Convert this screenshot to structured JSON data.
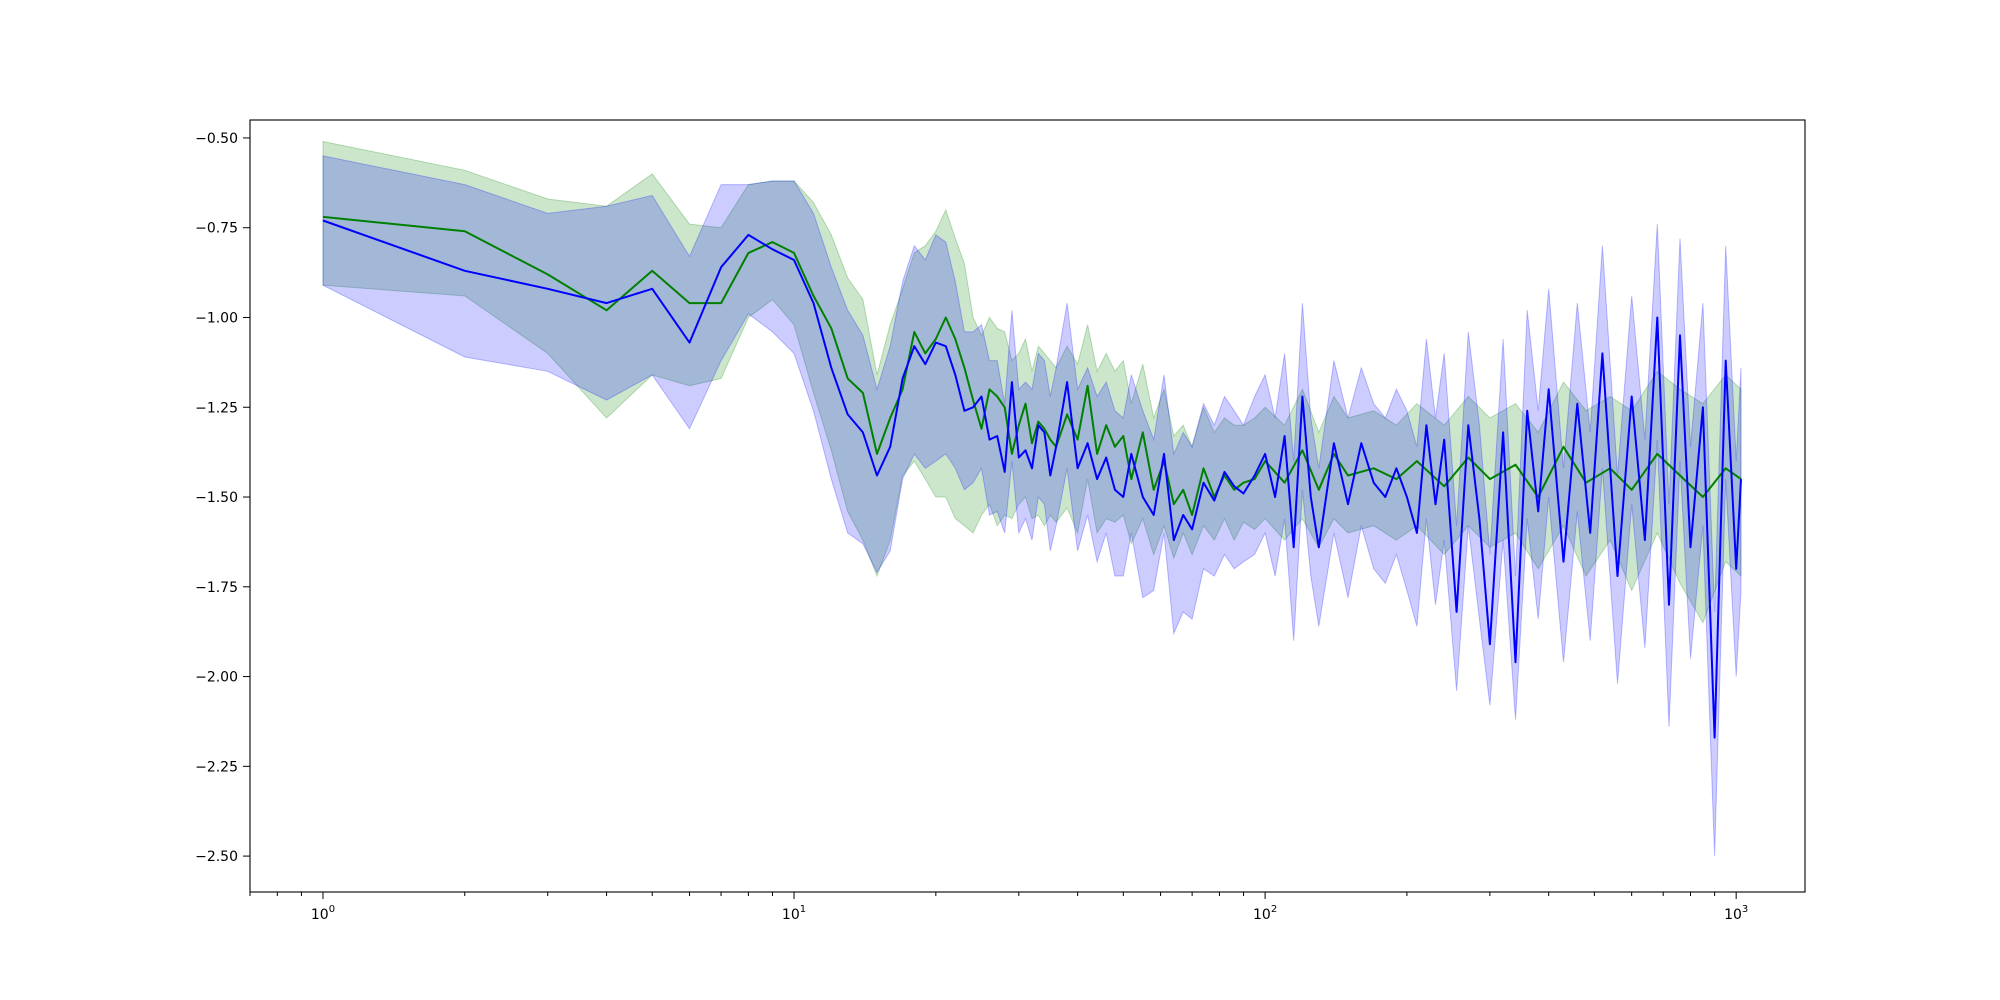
{
  "chart_data": {
    "type": "line",
    "title": "",
    "xlabel": "",
    "ylabel": "",
    "x_scale": "log",
    "xlim": [
      0.7,
      1400
    ],
    "ylim": [
      -2.6,
      -0.45
    ],
    "grid": false,
    "x_ticks": [
      {
        "value": 1,
        "label": "10",
        "exp": "0"
      },
      {
        "value": 10,
        "label": "10",
        "exp": "1"
      },
      {
        "value": 100,
        "label": "10",
        "exp": "2"
      },
      {
        "value": 1000,
        "label": "10",
        "exp": "3"
      }
    ],
    "y_ticks": [
      {
        "value": -0.5,
        "label": "−0.50"
      },
      {
        "value": -0.75,
        "label": "−0.75"
      },
      {
        "value": -1.0,
        "label": "−1.00"
      },
      {
        "value": -1.25,
        "label": "−1.25"
      },
      {
        "value": -1.5,
        "label": "−1.50"
      },
      {
        "value": -1.75,
        "label": "−1.75"
      },
      {
        "value": -2.0,
        "label": "−2.00"
      },
      {
        "value": -2.25,
        "label": "−2.25"
      },
      {
        "value": -2.5,
        "label": "−2.50"
      }
    ],
    "series": [
      {
        "color": "#008000",
        "band_color": "#008000",
        "band_opacity": 0.2,
        "x": [
          1,
          2,
          3,
          4,
          5,
          6,
          7,
          8,
          9,
          10,
          11,
          12,
          13,
          14,
          15,
          16,
          17,
          18,
          19,
          20,
          21,
          22,
          23,
          24,
          25,
          26,
          27,
          28,
          29,
          30,
          31,
          32,
          33,
          34,
          35,
          36,
          38,
          40,
          42,
          44,
          46,
          48,
          50,
          52,
          55,
          58,
          61,
          64,
          67,
          70,
          74,
          78,
          82,
          86,
          90,
          95,
          100,
          110,
          120,
          130,
          140,
          150,
          170,
          190,
          210,
          240,
          270,
          300,
          340,
          380,
          430,
          480,
          540,
          600,
          680,
          760,
          850,
          950,
          1024
        ],
        "y": [
          -0.72,
          -0.76,
          -0.88,
          -0.98,
          -0.87,
          -0.96,
          -0.96,
          -0.82,
          -0.79,
          -0.82,
          -0.94,
          -1.03,
          -1.17,
          -1.21,
          -1.38,
          -1.28,
          -1.2,
          -1.04,
          -1.1,
          -1.06,
          -1.0,
          -1.06,
          -1.14,
          -1.23,
          -1.31,
          -1.2,
          -1.22,
          -1.25,
          -1.38,
          -1.3,
          -1.24,
          -1.35,
          -1.29,
          -1.31,
          -1.34,
          -1.36,
          -1.27,
          -1.34,
          -1.19,
          -1.38,
          -1.3,
          -1.36,
          -1.33,
          -1.45,
          -1.32,
          -1.48,
          -1.4,
          -1.52,
          -1.48,
          -1.55,
          -1.42,
          -1.5,
          -1.44,
          -1.48,
          -1.46,
          -1.45,
          -1.4,
          -1.46,
          -1.37,
          -1.48,
          -1.38,
          -1.44,
          -1.42,
          -1.45,
          -1.4,
          -1.47,
          -1.39,
          -1.45,
          -1.41,
          -1.5,
          -1.36,
          -1.46,
          -1.42,
          -1.48,
          -1.38,
          -1.44,
          -1.5,
          -1.42,
          -1.45
        ],
        "y_lower": [
          -0.91,
          -0.94,
          -1.1,
          -1.28,
          -1.16,
          -1.19,
          -1.17,
          -1.0,
          -0.95,
          -1.02,
          -1.21,
          -1.37,
          -1.54,
          -1.62,
          -1.72,
          -1.62,
          -1.44,
          -1.4,
          -1.45,
          -1.5,
          -1.5,
          -1.56,
          -1.58,
          -1.6,
          -1.55,
          -1.52,
          -1.58,
          -1.55,
          -1.56,
          -1.52,
          -1.5,
          -1.56,
          -1.55,
          -1.58,
          -1.55,
          -1.57,
          -1.53,
          -1.6,
          -1.45,
          -1.6,
          -1.56,
          -1.57,
          -1.55,
          -1.63,
          -1.56,
          -1.66,
          -1.58,
          -1.67,
          -1.6,
          -1.66,
          -1.58,
          -1.62,
          -1.56,
          -1.62,
          -1.57,
          -1.59,
          -1.56,
          -1.62,
          -1.56,
          -1.64,
          -1.56,
          -1.6,
          -1.58,
          -1.62,
          -1.58,
          -1.66,
          -1.58,
          -1.64,
          -1.6,
          -1.7,
          -1.58,
          -1.72,
          -1.62,
          -1.76,
          -1.6,
          -1.74,
          -1.85,
          -1.68,
          -1.72
        ],
        "y_upper": [
          -0.51,
          -0.59,
          -0.67,
          -0.69,
          -0.6,
          -0.74,
          -0.75,
          -0.63,
          -0.62,
          -0.62,
          -0.68,
          -0.77,
          -0.89,
          -0.95,
          -1.16,
          -1.02,
          -0.92,
          -0.82,
          -0.8,
          -0.76,
          -0.7,
          -0.78,
          -0.85,
          -1.0,
          -1.05,
          -1.0,
          -1.03,
          -1.04,
          -1.12,
          -1.1,
          -1.06,
          -1.15,
          -1.08,
          -1.1,
          -1.12,
          -1.14,
          -1.08,
          -1.13,
          -1.02,
          -1.15,
          -1.1,
          -1.15,
          -1.12,
          -1.24,
          -1.13,
          -1.28,
          -1.2,
          -1.33,
          -1.3,
          -1.36,
          -1.25,
          -1.32,
          -1.28,
          -1.3,
          -1.3,
          -1.28,
          -1.25,
          -1.3,
          -1.2,
          -1.32,
          -1.22,
          -1.28,
          -1.26,
          -1.3,
          -1.24,
          -1.3,
          -1.22,
          -1.28,
          -1.24,
          -1.32,
          -1.18,
          -1.26,
          -1.22,
          -1.26,
          -1.15,
          -1.2,
          -1.24,
          -1.16,
          -1.2
        ]
      },
      {
        "color": "#0000ff",
        "band_color": "#0000ff",
        "band_opacity": 0.2,
        "x": [
          1,
          2,
          3,
          4,
          5,
          6,
          7,
          8,
          9,
          10,
          11,
          12,
          13,
          14,
          15,
          16,
          17,
          18,
          19,
          20,
          21,
          22,
          23,
          24,
          25,
          26,
          27,
          28,
          29,
          30,
          31,
          32,
          33,
          34,
          35,
          36,
          38,
          40,
          42,
          44,
          46,
          48,
          50,
          52,
          55,
          58,
          61,
          64,
          67,
          70,
          74,
          78,
          82,
          86,
          90,
          95,
          100,
          105,
          110,
          115,
          120,
          125,
          130,
          140,
          150,
          160,
          170,
          180,
          190,
          200,
          210,
          220,
          230,
          240,
          255,
          270,
          285,
          300,
          320,
          340,
          360,
          380,
          400,
          430,
          460,
          490,
          520,
          560,
          600,
          640,
          680,
          720,
          760,
          800,
          850,
          900,
          950,
          1000,
          1024
        ],
        "y": [
          -0.73,
          -0.87,
          -0.92,
          -0.96,
          -0.92,
          -1.07,
          -0.86,
          -0.77,
          -0.81,
          -0.84,
          -0.96,
          -1.14,
          -1.27,
          -1.32,
          -1.44,
          -1.36,
          -1.17,
          -1.08,
          -1.13,
          -1.07,
          -1.08,
          -1.16,
          -1.26,
          -1.25,
          -1.22,
          -1.34,
          -1.33,
          -1.43,
          -1.18,
          -1.39,
          -1.37,
          -1.42,
          -1.3,
          -1.32,
          -1.44,
          -1.36,
          -1.18,
          -1.42,
          -1.35,
          -1.45,
          -1.39,
          -1.48,
          -1.5,
          -1.38,
          -1.5,
          -1.55,
          -1.38,
          -1.62,
          -1.55,
          -1.59,
          -1.46,
          -1.51,
          -1.43,
          -1.47,
          -1.49,
          -1.44,
          -1.38,
          -1.5,
          -1.33,
          -1.64,
          -1.22,
          -1.5,
          -1.64,
          -1.35,
          -1.52,
          -1.35,
          -1.46,
          -1.5,
          -1.42,
          -1.5,
          -1.6,
          -1.3,
          -1.52,
          -1.34,
          -1.82,
          -1.3,
          -1.56,
          -1.91,
          -1.32,
          -1.96,
          -1.26,
          -1.54,
          -1.2,
          -1.68,
          -1.24,
          -1.6,
          -1.1,
          -1.72,
          -1.22,
          -1.62,
          -1.0,
          -1.8,
          -1.05,
          -1.64,
          -1.25,
          -2.17,
          -1.12,
          -1.7,
          -1.45
        ],
        "y_lower": [
          -0.91,
          -1.11,
          -1.15,
          -1.23,
          -1.16,
          -1.31,
          -1.12,
          -0.99,
          -1.04,
          -1.1,
          -1.26,
          -1.45,
          -1.6,
          -1.63,
          -1.71,
          -1.65,
          -1.45,
          -1.38,
          -1.42,
          -1.4,
          -1.38,
          -1.42,
          -1.48,
          -1.46,
          -1.42,
          -1.55,
          -1.54,
          -1.6,
          -1.4,
          -1.6,
          -1.56,
          -1.62,
          -1.5,
          -1.52,
          -1.65,
          -1.58,
          -1.42,
          -1.65,
          -1.55,
          -1.68,
          -1.6,
          -1.72,
          -1.72,
          -1.6,
          -1.78,
          -1.76,
          -1.6,
          -1.88,
          -1.82,
          -1.84,
          -1.7,
          -1.72,
          -1.66,
          -1.7,
          -1.68,
          -1.66,
          -1.6,
          -1.72,
          -1.56,
          -1.9,
          -1.48,
          -1.72,
          -1.86,
          -1.6,
          -1.78,
          -1.58,
          -1.7,
          -1.74,
          -1.66,
          -1.76,
          -1.86,
          -1.56,
          -1.8,
          -1.62,
          -2.04,
          -1.58,
          -1.84,
          -2.08,
          -1.62,
          -2.12,
          -1.56,
          -1.84,
          -1.5,
          -1.96,
          -1.54,
          -1.9,
          -1.42,
          -2.02,
          -1.52,
          -1.92,
          -1.34,
          -2.14,
          -1.4,
          -1.95,
          -1.58,
          -2.5,
          -1.45,
          -2.0,
          -1.76
        ],
        "y_upper": [
          -0.55,
          -0.63,
          -0.71,
          -0.69,
          -0.66,
          -0.83,
          -0.63,
          -0.63,
          -0.62,
          -0.62,
          -0.71,
          -0.86,
          -0.98,
          -1.05,
          -1.2,
          -1.08,
          -0.9,
          -0.8,
          -0.84,
          -0.77,
          -0.79,
          -0.9,
          -1.04,
          -1.04,
          -1.02,
          -1.12,
          -1.12,
          -1.24,
          -0.98,
          -1.2,
          -1.18,
          -1.2,
          -1.1,
          -1.12,
          -1.22,
          -1.14,
          -0.96,
          -1.2,
          -1.14,
          -1.22,
          -1.18,
          -1.26,
          -1.28,
          -1.16,
          -1.26,
          -1.34,
          -1.16,
          -1.38,
          -1.32,
          -1.36,
          -1.24,
          -1.3,
          -1.22,
          -1.26,
          -1.3,
          -1.22,
          -1.16,
          -1.28,
          -1.1,
          -1.4,
          -0.96,
          -1.28,
          -1.42,
          -1.12,
          -1.28,
          -1.14,
          -1.24,
          -1.28,
          -1.2,
          -1.26,
          -1.36,
          -1.06,
          -1.28,
          -1.1,
          -1.58,
          -1.04,
          -1.3,
          -1.66,
          -1.06,
          -1.72,
          -0.98,
          -1.26,
          -0.92,
          -1.42,
          -0.96,
          -1.32,
          -0.8,
          -1.44,
          -0.94,
          -1.34,
          -0.74,
          -1.52,
          -0.78,
          -1.36,
          -0.96,
          -1.82,
          -0.8,
          -1.4,
          -1.14
        ]
      }
    ]
  }
}
